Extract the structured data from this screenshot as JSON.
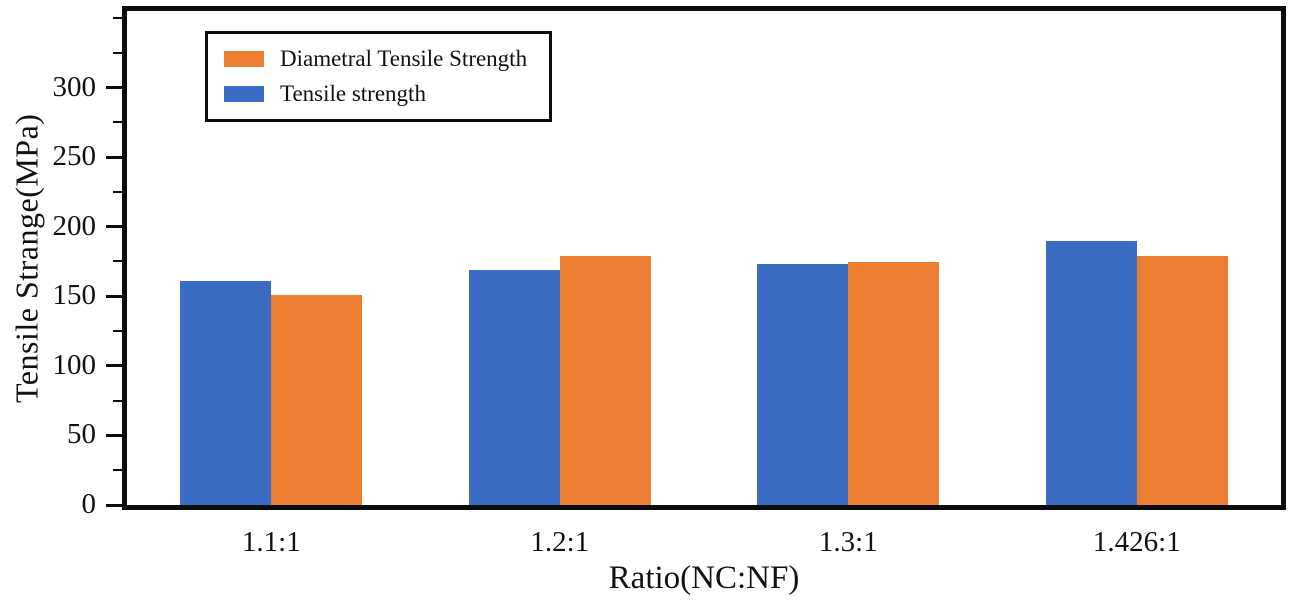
{
  "chart_data": {
    "type": "bar",
    "title": "",
    "xlabel": "Ratio(NC:NF)",
    "ylabel": "Tensile Strange(MPa)",
    "categories": [
      "1.1:1",
      "1.2:1",
      "1.3:1",
      "1.426:1"
    ],
    "series": [
      {
        "name": "Tensile strength",
        "color": "#3b6cc4",
        "values": [
          161,
          169,
          173,
          190
        ]
      },
      {
        "name": "Diametral Tensile Strength",
        "color": "#ed7d31",
        "values": [
          151,
          179,
          175,
          179
        ]
      }
    ],
    "legend": [
      {
        "label": "Diametral Tensile Strength",
        "color": "#ed7d31"
      },
      {
        "label": "Tensile strength",
        "color": "#3b6cc4"
      }
    ],
    "yticks": [
      0,
      50,
      100,
      150,
      200,
      250,
      300
    ],
    "ylim": [
      0,
      355
    ],
    "grid": false,
    "legend_position": "top-left"
  }
}
